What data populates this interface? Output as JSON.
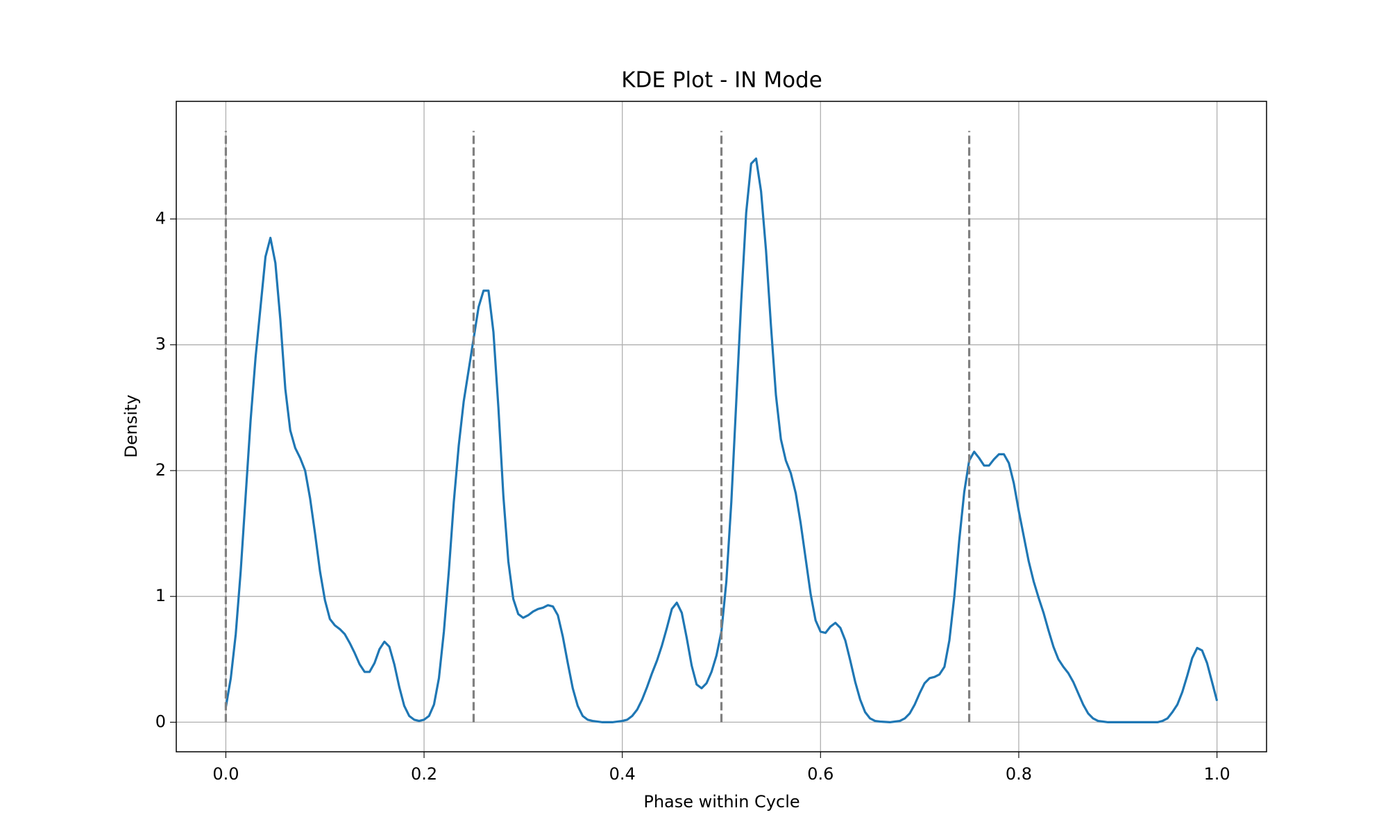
{
  "chart_data": {
    "type": "line",
    "title": "KDE Plot - IN Mode",
    "xlabel": "Phase within Cycle",
    "ylabel": "Density",
    "x": [
      0,
      0.005,
      0.01,
      0.015,
      0.02,
      0.025,
      0.03,
      0.035,
      0.04,
      0.045,
      0.05,
      0.055,
      0.06,
      0.065,
      0.07,
      0.075,
      0.08,
      0.085,
      0.09,
      0.095,
      0.1,
      0.105,
      0.11,
      0.115,
      0.12,
      0.125,
      0.13,
      0.135,
      0.14,
      0.145,
      0.15,
      0.155,
      0.16,
      0.165,
      0.17,
      0.175,
      0.18,
      0.185,
      0.19,
      0.195,
      0.2,
      0.205,
      0.21,
      0.215,
      0.22,
      0.225,
      0.23,
      0.235,
      0.24,
      0.245,
      0.25,
      0.255,
      0.26,
      0.265,
      0.27,
      0.275,
      0.28,
      0.285,
      0.29,
      0.295,
      0.3,
      0.305,
      0.31,
      0.315,
      0.32,
      0.325,
      0.33,
      0.335,
      0.34,
      0.345,
      0.35,
      0.355,
      0.36,
      0.365,
      0.37,
      0.38,
      0.39,
      0.4,
      0.405,
      0.41,
      0.415,
      0.42,
      0.425,
      0.43,
      0.435,
      0.44,
      0.445,
      0.45,
      0.455,
      0.46,
      0.465,
      0.47,
      0.475,
      0.48,
      0.485,
      0.49,
      0.495,
      0.5,
      0.505,
      0.51,
      0.515,
      0.52,
      0.525,
      0.53,
      0.535,
      0.54,
      0.545,
      0.55,
      0.555,
      0.56,
      0.565,
      0.57,
      0.575,
      0.58,
      0.585,
      0.59,
      0.595,
      0.6,
      0.605,
      0.61,
      0.615,
      0.62,
      0.625,
      0.63,
      0.635,
      0.64,
      0.645,
      0.65,
      0.655,
      0.66,
      0.67,
      0.675,
      0.68,
      0.685,
      0.69,
      0.695,
      0.7,
      0.705,
      0.71,
      0.715,
      0.72,
      0.725,
      0.73,
      0.735,
      0.74,
      0.745,
      0.75,
      0.755,
      0.76,
      0.765,
      0.77,
      0.775,
      0.78,
      0.785,
      0.79,
      0.795,
      0.8,
      0.805,
      0.81,
      0.815,
      0.82,
      0.825,
      0.83,
      0.835,
      0.84,
      0.845,
      0.85,
      0.855,
      0.86,
      0.865,
      0.87,
      0.875,
      0.88,
      0.885,
      0.89,
      0.9,
      0.91,
      0.92,
      0.93,
      0.94,
      0.945,
      0.95,
      0.955,
      0.96,
      0.965,
      0.97,
      0.975,
      0.98,
      0.985,
      0.99,
      0.995,
      1.0
    ],
    "series": [
      {
        "color": "#1f77b4",
        "values": [
          0.12,
          0.35,
          0.7,
          1.2,
          1.8,
          2.4,
          2.9,
          3.3,
          3.7,
          3.85,
          3.65,
          3.2,
          2.65,
          2.32,
          2.18,
          2.1,
          2.0,
          1.78,
          1.5,
          1.2,
          0.97,
          0.82,
          0.77,
          0.74,
          0.7,
          0.63,
          0.55,
          0.46,
          0.4,
          0.4,
          0.47,
          0.58,
          0.64,
          0.6,
          0.46,
          0.28,
          0.13,
          0.05,
          0.02,
          0.01,
          0.02,
          0.05,
          0.14,
          0.35,
          0.72,
          1.2,
          1.75,
          2.2,
          2.55,
          2.8,
          3.05,
          3.3,
          3.43,
          3.43,
          3.1,
          2.5,
          1.8,
          1.28,
          0.98,
          0.86,
          0.83,
          0.85,
          0.88,
          0.9,
          0.91,
          0.93,
          0.92,
          0.85,
          0.68,
          0.47,
          0.27,
          0.13,
          0.05,
          0.02,
          0.01,
          0,
          0,
          0.01,
          0.02,
          0.05,
          0.1,
          0.18,
          0.28,
          0.39,
          0.49,
          0.61,
          0.75,
          0.9,
          0.95,
          0.87,
          0.67,
          0.45,
          0.3,
          0.27,
          0.31,
          0.4,
          0.53,
          0.72,
          1.12,
          1.75,
          2.55,
          3.35,
          4.05,
          4.44,
          4.48,
          4.22,
          3.75,
          3.15,
          2.6,
          2.25,
          2.08,
          1.98,
          1.82,
          1.58,
          1.3,
          1.02,
          0.81,
          0.72,
          0.71,
          0.76,
          0.79,
          0.75,
          0.65,
          0.49,
          0.32,
          0.18,
          0.08,
          0.03,
          0.01,
          0.005,
          0,
          0.005,
          0.01,
          0.03,
          0.07,
          0.14,
          0.23,
          0.31,
          0.35,
          0.36,
          0.38,
          0.44,
          0.65,
          1.0,
          1.45,
          1.83,
          2.08,
          2.15,
          2.1,
          2.04,
          2.04,
          2.09,
          2.13,
          2.13,
          2.06,
          1.9,
          1.68,
          1.48,
          1.28,
          1.12,
          0.99,
          0.87,
          0.73,
          0.6,
          0.5,
          0.44,
          0.39,
          0.32,
          0.23,
          0.14,
          0.07,
          0.03,
          0.01,
          0.005,
          0,
          0,
          0,
          0,
          0,
          0,
          0.01,
          0.03,
          0.08,
          0.14,
          0.24,
          0.37,
          0.51,
          0.59,
          0.57,
          0.47,
          0.32,
          0.17
        ]
      }
    ],
    "vlines": {
      "x": [
        0,
        0.25,
        0.5,
        0.75
      ],
      "ymin": 0,
      "ymax": 4.7,
      "color": "#808080",
      "style": "dashed"
    },
    "xlim": [
      -0.05,
      1.05
    ],
    "ylim": [
      -0.235,
      4.935
    ],
    "xticks": [
      {
        "value": 0,
        "label": "0.0"
      },
      0.2,
      0.4,
      0.6,
      0.8,
      {
        "value": 1,
        "label": "1.0"
      }
    ],
    "yticks": [
      0,
      1,
      2,
      3,
      4
    ],
    "grid": true
  }
}
